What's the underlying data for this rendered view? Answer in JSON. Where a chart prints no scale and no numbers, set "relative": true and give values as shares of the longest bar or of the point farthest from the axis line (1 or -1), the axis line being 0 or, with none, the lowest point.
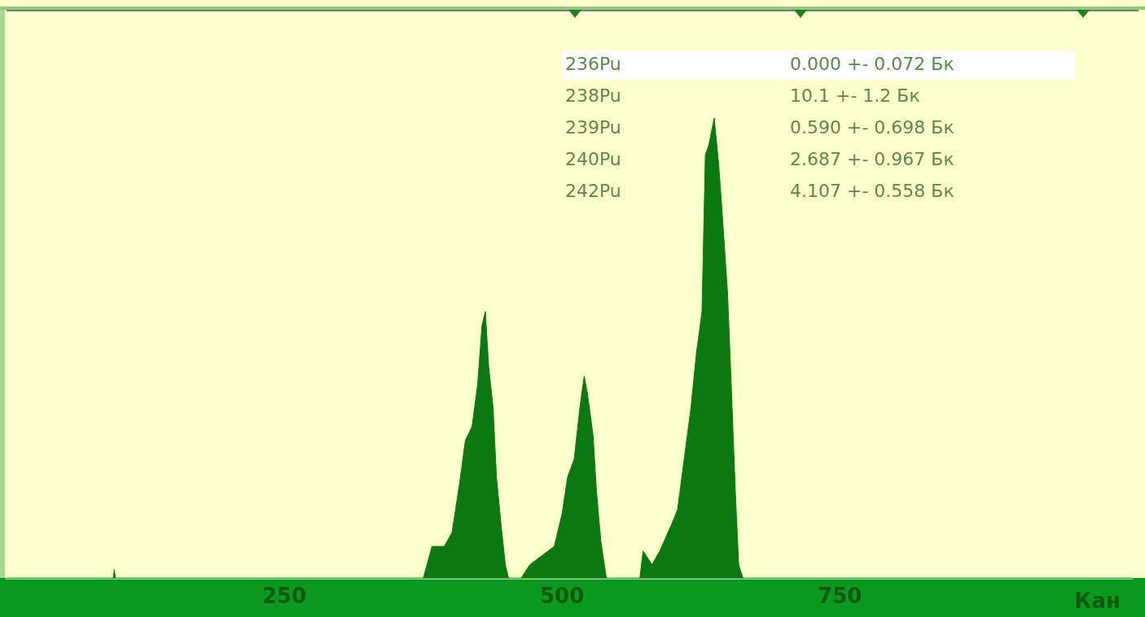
{
  "chart_data": {
    "type": "area",
    "relative": true,
    "xlabel": "Кан",
    "color": "#0a7a10",
    "xlim": [
      0,
      1013
    ],
    "xticks": [
      250,
      500,
      750
    ],
    "grid": false,
    "legend": false,
    "x": [
      0,
      96,
      97,
      98,
      375,
      383,
      394,
      401,
      408,
      413,
      419,
      424,
      428,
      431,
      434,
      438,
      441,
      445,
      449,
      452,
      463,
      471,
      482,
      493,
      500,
      505,
      511,
      516,
      520,
      523,
      528,
      531,
      535,
      540,
      570,
      573,
      581,
      588,
      599,
      604,
      610,
      616,
      621,
      626,
      629,
      632,
      637,
      641,
      644,
      649,
      652,
      656,
      659,
      663,
      1013
    ],
    "values": [
      0,
      0,
      0.02,
      0,
      0,
      0.07,
      0.07,
      0.1,
      0.21,
      0.3,
      0.33,
      0.42,
      0.55,
      0.58,
      0.46,
      0.37,
      0.22,
      0.12,
      0.03,
      0,
      0,
      0.03,
      0.05,
      0.07,
      0.14,
      0.22,
      0.26,
      0.37,
      0.44,
      0.4,
      0.31,
      0.19,
      0.08,
      0,
      0,
      0.06,
      0.03,
      0.06,
      0.12,
      0.15,
      0.26,
      0.37,
      0.49,
      0.58,
      0.92,
      0.94,
      1,
      0.9,
      0.8,
      0.62,
      0.44,
      0.19,
      0.03,
      0,
      0
    ],
    "annotations": [
      "236Pu\t0.000 +- 0.072 Бк",
      "238Pu\t10.1 +- 1.2 Бк",
      "239Pu\t0.590 +- 0.698 Бк",
      "240Pu\t2.687 +- 0.967 Бк",
      "242Pu\t4.107 +- 0.558 Бк"
    ]
  }
}
